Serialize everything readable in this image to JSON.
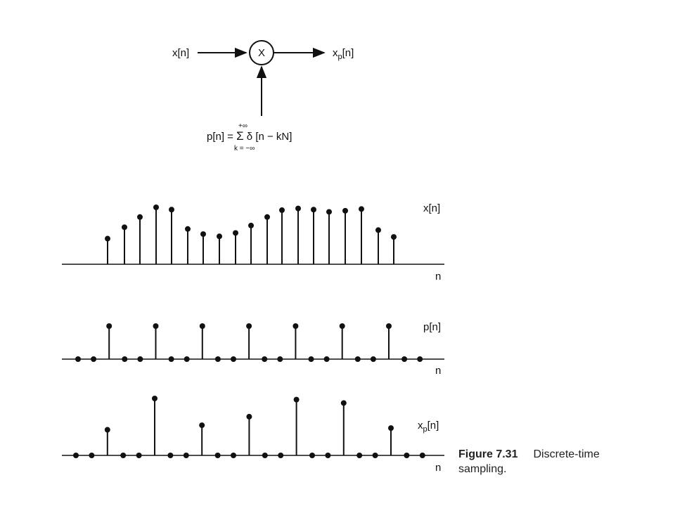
{
  "block_diagram": {
    "input_label": "x[n]",
    "multiplier_symbol": "X",
    "output_label_main": "x",
    "output_label_sub": "p",
    "output_label_tail": "[n]",
    "sum_formula_left": "p[n] = ",
    "sum_symbol": "Σ",
    "sum_formula_right": " δ [n − kN]",
    "sum_upper": "+∞",
    "sum_lower": "k = −∞"
  },
  "chart_data": [
    {
      "type": "stem",
      "series_label": "x[n]",
      "xlabel": "n",
      "values": [
        0.45,
        0.65,
        0.83,
        1.0,
        0.96,
        0.62,
        0.53,
        0.49,
        0.55,
        0.68,
        0.83,
        0.95,
        0.98,
        0.96,
        0.92,
        0.94,
        0.97,
        0.6,
        0.48
      ]
    },
    {
      "type": "stem",
      "series_label": "p[n]",
      "xlabel": "n",
      "values": [
        0,
        0,
        1,
        0,
        0,
        1,
        0,
        0,
        1,
        0,
        0,
        1,
        0,
        0,
        1,
        0,
        0,
        1,
        0,
        0,
        1,
        0,
        0
      ]
    },
    {
      "type": "stem",
      "series_label_main": "x",
      "series_label_sub": "p",
      "series_label_tail": "[n]",
      "xlabel": "n",
      "values": [
        0,
        0,
        0.45,
        0,
        0,
        1.0,
        0,
        0,
        0.53,
        0,
        0,
        0.68,
        0,
        0,
        0.98,
        0,
        0,
        0.92,
        0,
        0,
        0.48,
        0,
        0
      ]
    }
  ],
  "caption": {
    "figure_number": "Figure 7.31",
    "text": "Discrete-time sampling."
  }
}
